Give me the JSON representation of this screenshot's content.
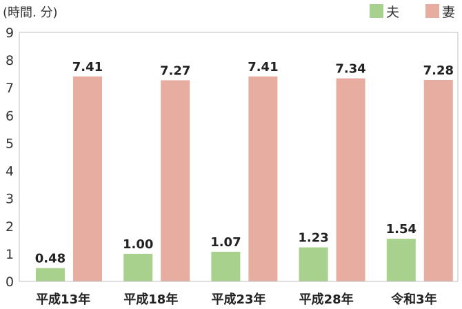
{
  "chart_data": {
    "type": "bar",
    "unit_label": "(時間. 分)",
    "categories": [
      "平成13年",
      "平成18年",
      "平成23年",
      "平成28年",
      "令和3年"
    ],
    "series": [
      {
        "name": "夫",
        "color": "#a9d18e",
        "values": [
          0.48,
          1.0,
          1.07,
          1.23,
          1.54
        ],
        "labels": [
          "0.48",
          "1.00",
          "1.07",
          "1.23",
          "1.54"
        ]
      },
      {
        "name": "妻",
        "color": "#e6ada0",
        "values": [
          7.41,
          7.27,
          7.41,
          7.34,
          7.28
        ],
        "labels": [
          "7.41",
          "7.27",
          "7.41",
          "7.34",
          "7.28"
        ]
      }
    ],
    "ylim": [
      0,
      9
    ],
    "yticks": [
      "0",
      "1",
      "2",
      "3",
      "4",
      "5",
      "6",
      "7",
      "8",
      "9"
    ],
    "legend_position": "top-right",
    "grid": false
  }
}
